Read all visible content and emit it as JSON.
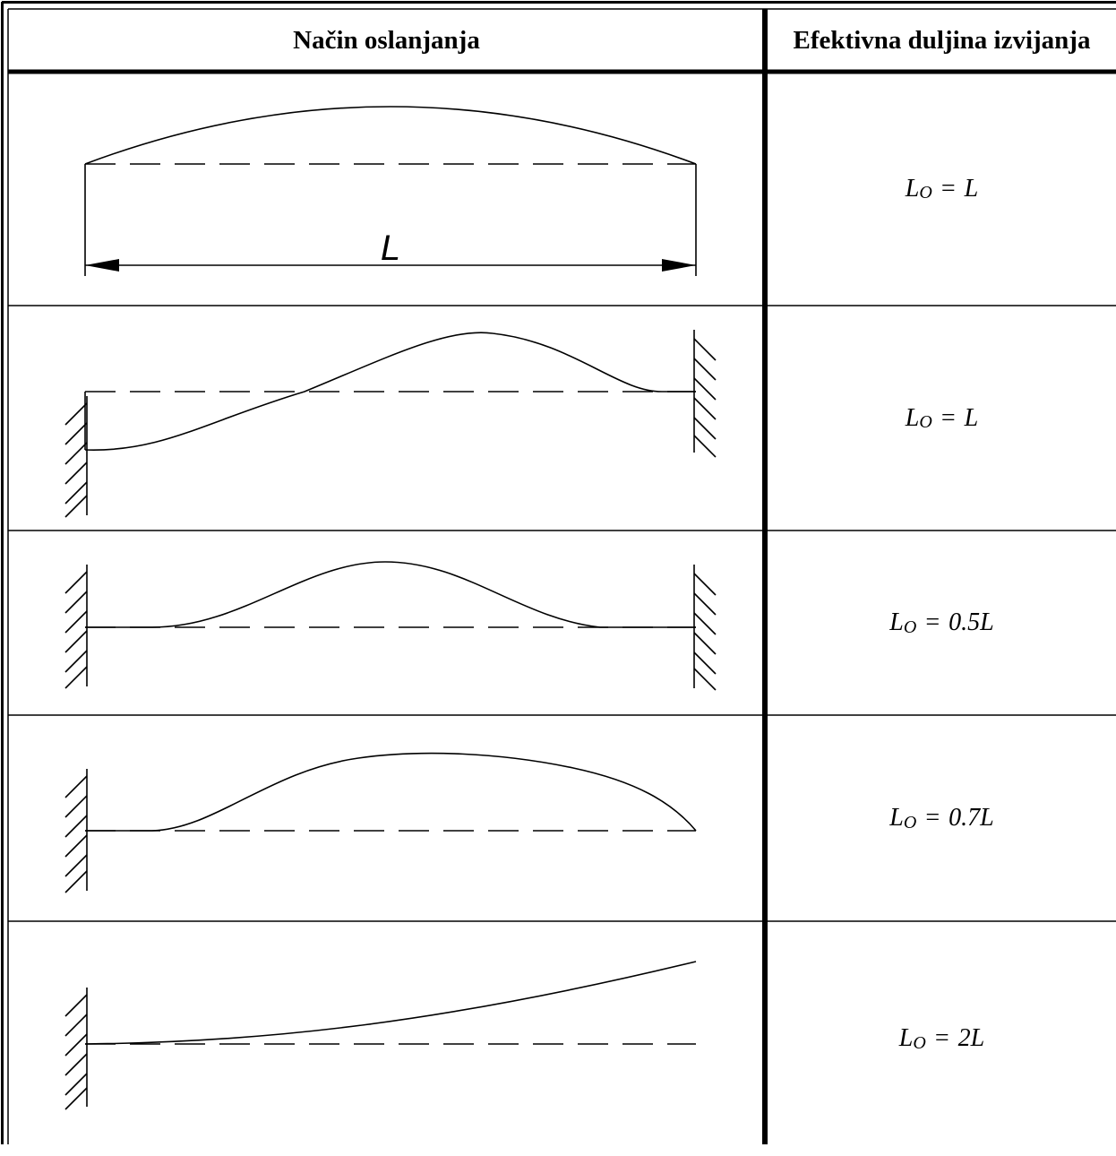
{
  "headers": {
    "support_type": "Način oslanjanja",
    "effective_length": "Efektivna duljina izvijanja"
  },
  "diagram_length_label": "L",
  "rows": [
    {
      "supports": "pinned-pinned",
      "formula": {
        "symbol": "L",
        "subscript": "O",
        "value": "L"
      }
    },
    {
      "supports": "fixed-fixed with sway",
      "formula": {
        "symbol": "L",
        "subscript": "O",
        "value": "L"
      }
    },
    {
      "supports": "fixed-fixed",
      "formula": {
        "symbol": "L",
        "subscript": "O",
        "value": "0.5L"
      }
    },
    {
      "supports": "fixed-pinned",
      "formula": {
        "symbol": "L",
        "subscript": "O",
        "value": "0.7L"
      }
    },
    {
      "supports": "fixed-free",
      "formula": {
        "symbol": "L",
        "subscript": "O",
        "value": "2L"
      }
    }
  ]
}
